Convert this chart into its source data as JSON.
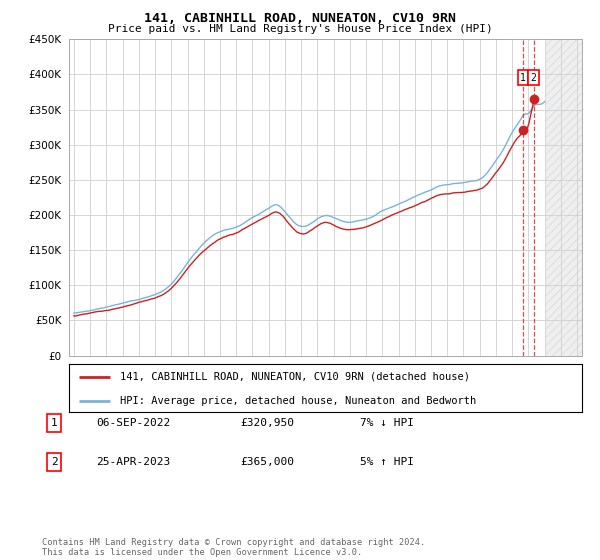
{
  "title": "141, CABINHILL ROAD, NUNEATON, CV10 9RN",
  "subtitle": "Price paid vs. HM Land Registry's House Price Index (HPI)",
  "legend_line1": "141, CABINHILL ROAD, NUNEATON, CV10 9RN (detached house)",
  "legend_line2": "HPI: Average price, detached house, Nuneaton and Bedworth",
  "transaction1_label": "1",
  "transaction1_date": "06-SEP-2022",
  "transaction1_price": "£320,950",
  "transaction1_hpi": "7% ↓ HPI",
  "transaction2_label": "2",
  "transaction2_date": "25-APR-2023",
  "transaction2_price": "£365,000",
  "transaction2_hpi": "5% ↑ HPI",
  "footer": "Contains HM Land Registry data © Crown copyright and database right 2024.\nThis data is licensed under the Open Government Licence v3.0.",
  "ylim": [
    0,
    450000
  ],
  "yticks": [
    0,
    50000,
    100000,
    150000,
    200000,
    250000,
    300000,
    350000,
    400000,
    450000
  ],
  "hpi_color": "#7ab4d8",
  "price_color": "#cc2222",
  "transaction1_x": 2022.67,
  "transaction2_x": 2023.32,
  "transaction1_y": 320950,
  "transaction2_y": 365000,
  "hatched_start": 2024.08,
  "xlim_start": 1994.7,
  "xlim_end": 2026.3
}
